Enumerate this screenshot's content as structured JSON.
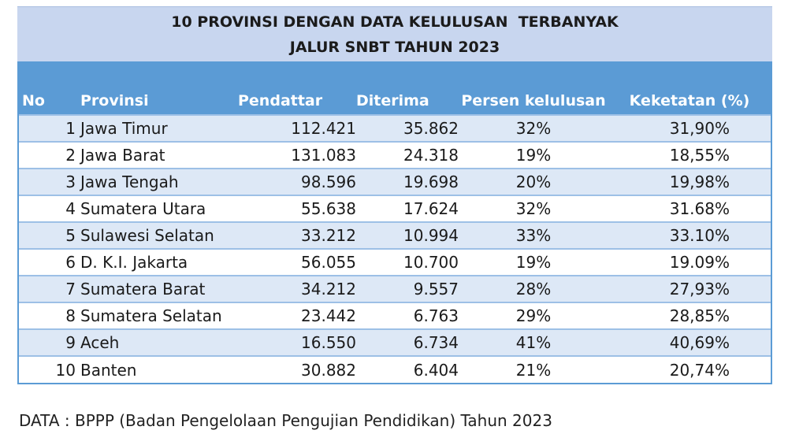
{
  "title": {
    "line1": "10 PROVINSI DENGAN DATA KELULUSAN  TERBANYAK",
    "line2": "JALUR SNBT TAHUN 2023"
  },
  "table": {
    "headers": [
      "No",
      "Provinsi",
      "Pendattar",
      "Diterima",
      "Persen kelulusan",
      "Keketatan (%)"
    ],
    "rows": [
      [
        "1",
        "Jawa Timur",
        "112.421",
        "35.862",
        "32%",
        "31,90%"
      ],
      [
        "2",
        "Jawa Barat",
        "131.083",
        "24.318",
        "19%",
        "18,55%"
      ],
      [
        "3",
        "Jawa Tengah",
        "98.596",
        "19.698",
        "20%",
        "19,98%"
      ],
      [
        "4",
        "Sumatera Utara",
        "55.638",
        "17.624",
        "32%",
        "31.68%"
      ],
      [
        "5",
        "Sulawesi Selatan",
        "33.212",
        "10.994",
        "33%",
        "33.10%"
      ],
      [
        "6",
        "D. K.I. Jakarta",
        "56.055",
        "10.700",
        "19%",
        "19.09%"
      ],
      [
        "7",
        "Sumatera Barat",
        "34.212",
        "9.557",
        "28%",
        "27,93%"
      ],
      [
        "8",
        "Sumatera Selatan",
        "23.442",
        "6.763",
        "29%",
        "28,85%"
      ],
      [
        "9",
        "Aceh",
        "16.550",
        "6.734",
        "41%",
        "40,69%"
      ],
      [
        "10",
        "Banten",
        "30.882",
        "6.404",
        "21%",
        "20,74%"
      ]
    ]
  },
  "source": "DATA : BPPP (Badan Pengelolaan Pengujian Pendidikan) Tahun 2023",
  "colors": {
    "title_bg": "#c8d6ef",
    "header_bg": "#5b9bd5",
    "band_row": "#dde8f6"
  }
}
